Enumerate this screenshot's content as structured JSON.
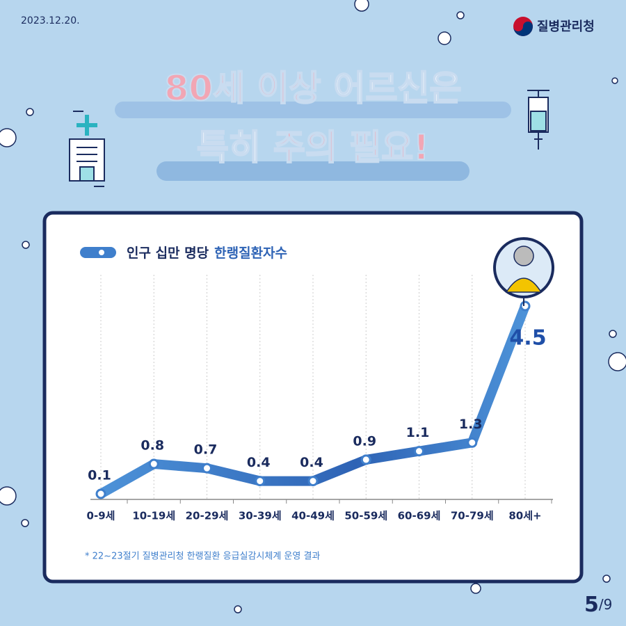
{
  "header": {
    "date": "2023.12.20.",
    "agency": "질병관리청"
  },
  "title": {
    "line1": [
      "80세 이상",
      "어르신은"
    ],
    "line2": [
      "특히",
      "주의 필요!"
    ]
  },
  "chart_data": {
    "type": "line",
    "legend": [
      "인구 십만 명당",
      "한랭질환자수"
    ],
    "categories": [
      "0-9세",
      "10-19세",
      "20-29세",
      "30-39세",
      "40-49세",
      "50-59세",
      "60-69세",
      "70-79세",
      "80세+"
    ],
    "values": [
      0.1,
      0.8,
      0.7,
      0.4,
      0.4,
      0.9,
      1.1,
      1.3,
      4.5
    ],
    "color": "#3f7fcc"
  },
  "footnote": "* 22~23절기 질병관리청 한랭질환 응급실감시체계 운영 결과",
  "page": {
    "current": "5",
    "total": "/9"
  }
}
